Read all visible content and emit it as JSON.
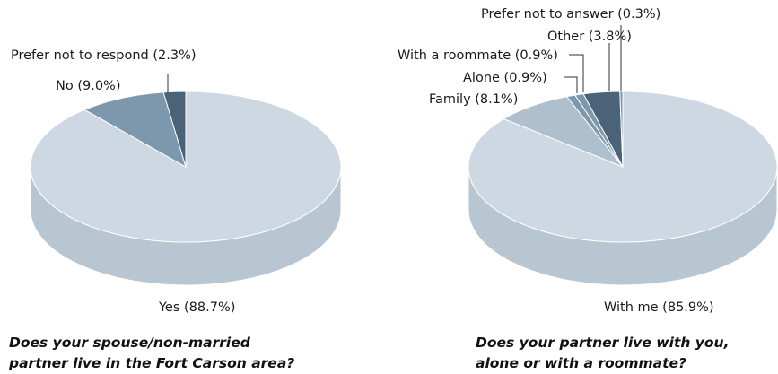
{
  "colors": {
    "light": "#cdd8e2",
    "light_side": "#b8c6d2",
    "medium_light": "#aebfcd",
    "medium": "#7d97ac",
    "dark": "#4a6378",
    "outline": "#ffffff"
  },
  "chart_data": [
    {
      "type": "pie",
      "title": "Does your spouse/non-married partner live in the Fort Carson area?",
      "title_lines": [
        "Does your spouse/non-married",
        "partner live in the Fort Carson area?"
      ],
      "slices": [
        {
          "label": "Yes (88.7%)",
          "name": "Yes",
          "value": 88.7,
          "color": "#cdd8e2"
        },
        {
          "label": "No (9.0%)",
          "name": "No",
          "value": 9.0,
          "color": "#7d97ac"
        },
        {
          "label": "Prefer not to respond (2.3%)",
          "name": "Prefer not to respond",
          "value": 2.3,
          "color": "#4a6378"
        }
      ]
    },
    {
      "type": "pie",
      "title": "Does your partner live with you, alone or with a roommate?",
      "title_lines": [
        "Does your partner live with you,",
        "alone or with a roommate?"
      ],
      "slices": [
        {
          "label": "With me (85.9%)",
          "name": "With me",
          "value": 85.9,
          "color": "#cdd8e2"
        },
        {
          "label": "Family (8.1%)",
          "name": "Family",
          "value": 8.1,
          "color": "#aebfcd"
        },
        {
          "label": "Alone (0.9%)",
          "name": "Alone",
          "value": 0.9,
          "color": "#7d97ac"
        },
        {
          "label": "With a roommate (0.9%)",
          "name": "With a roommate",
          "value": 0.9,
          "color": "#7d97ac"
        },
        {
          "label": "Other (3.8%)",
          "name": "Other",
          "value": 3.8,
          "color": "#4a6378"
        },
        {
          "label": "Prefer not to answer (0.3%)",
          "name": "Prefer not to answer",
          "value": 0.3,
          "color": "#7d97ac"
        }
      ]
    }
  ]
}
